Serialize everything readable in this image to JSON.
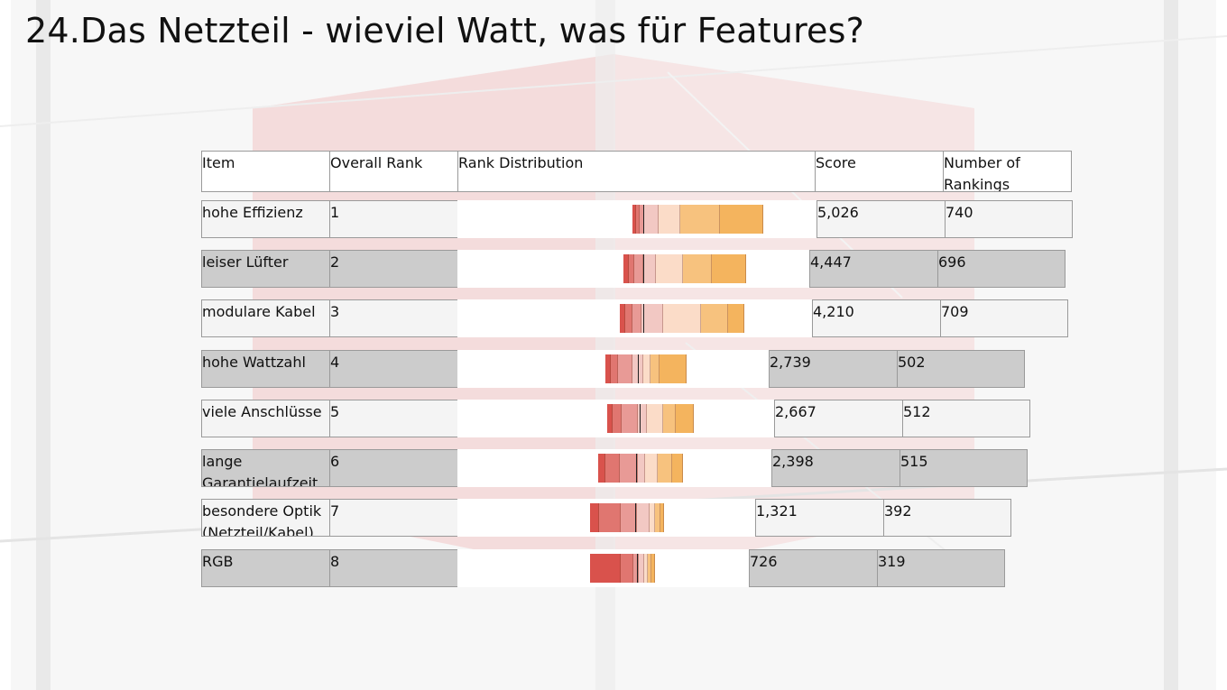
{
  "title": "24.Das Netzteil - wieviel Watt, was für Features?",
  "table": {
    "headers": {
      "item": "Item",
      "overall_rank": "Overall Rank",
      "rank_distribution": "Rank Distribution",
      "score": "Score",
      "rankings": "Number of Rankings"
    },
    "rows": [
      {
        "item": "hohe Effizienz",
        "rank": "1",
        "score": "5,026",
        "rankings": "740"
      },
      {
        "item": "leiser Lüfter",
        "rank": "2",
        "score": "4,447",
        "rankings": "696"
      },
      {
        "item": "modulare Kabel",
        "rank": "3",
        "score": "4,210",
        "rankings": "709"
      },
      {
        "item": "hohe Wattzahl",
        "rank": "4",
        "score": "2,739",
        "rankings": "502"
      },
      {
        "item": "viele Anschlüsse",
        "rank": "5",
        "score": "2,667",
        "rankings": "512"
      },
      {
        "item": "lange Garantielaufzeit",
        "rank": "6",
        "score": "2,398",
        "rankings": "515"
      },
      {
        "item": "besondere Optik (Netzteil/Kabel)",
        "rank": "7",
        "score": "1,321",
        "rankings": "392"
      },
      {
        "item": "RGB",
        "rank": "8",
        "score": "726",
        "rankings": "319"
      }
    ]
  },
  "colors": {
    "rank_colors": [
      "#d9524c",
      "#e07670",
      "#e89a96",
      "#f2c8c3",
      "#fbdcc8",
      "#f9d0a4",
      "#f7c27e",
      "#f4b45e"
    ],
    "light_row": "#f4f4f4",
    "dark_row": "#cccccc"
  }
}
